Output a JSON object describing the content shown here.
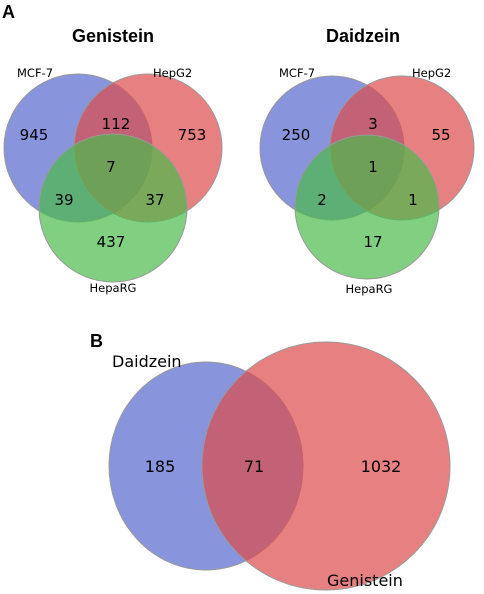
{
  "panel_a": {
    "letter": "A",
    "venns": [
      {
        "title": "Genistein",
        "sets": [
          "MCF-7",
          "HepG2",
          "HepaRG"
        ],
        "counts": {
          "mcf7_only": "945",
          "hepg2_only": "753",
          "heparg_only": "437",
          "mcf7_hepg2": "112",
          "mcf7_heparg": "39",
          "hepg2_heparg": "37",
          "all_three": "7"
        }
      },
      {
        "title": "Daidzein",
        "sets": [
          "MCF-7",
          "HepG2",
          "HepaRG"
        ],
        "counts": {
          "mcf7_only": "250",
          "hepg2_only": "55",
          "heparg_only": "17",
          "mcf7_hepg2": "3",
          "mcf7_heparg": "2",
          "hepg2_heparg": "1",
          "all_three": "1"
        }
      }
    ]
  },
  "panel_b": {
    "letter": "B",
    "sets": [
      "Daidzein",
      "Genistein"
    ],
    "counts": {
      "daidzein_only": "185",
      "shared": "71",
      "genistein_only": "1032"
    }
  },
  "colors": {
    "blue": "#5566cc",
    "red": "#dd4c4c",
    "green": "#4cbb4c",
    "outline": "#999999"
  }
}
